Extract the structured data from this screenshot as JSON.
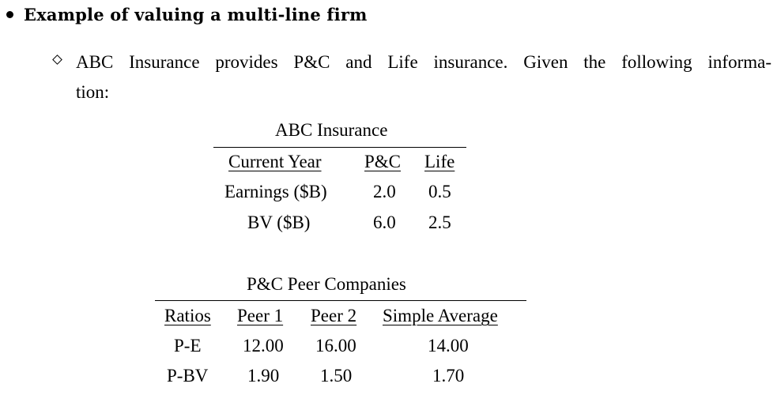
{
  "heading": "Example of valuing a multi-line firm",
  "intro_line1": "ABC Insurance provides P&C and Life insurance. Given the following informa-",
  "intro_line2": "tion:",
  "table1": {
    "caption": "ABC Insurance",
    "headers": [
      "Current Year",
      "P&C",
      "Life"
    ],
    "rows": [
      [
        "Earnings ($B)",
        "2.0",
        "0.5"
      ],
      [
        "BV ($B)",
        "6.0",
        "2.5"
      ]
    ]
  },
  "table2": {
    "caption": "P&C Peer Companies",
    "headers": [
      "Ratios",
      "Peer 1",
      "Peer 2",
      "Simple Average"
    ],
    "rows": [
      [
        "P-E",
        "12.00",
        "16.00",
        "14.00"
      ],
      [
        "P-BV",
        "1.90",
        "1.50",
        "1.70"
      ]
    ]
  }
}
